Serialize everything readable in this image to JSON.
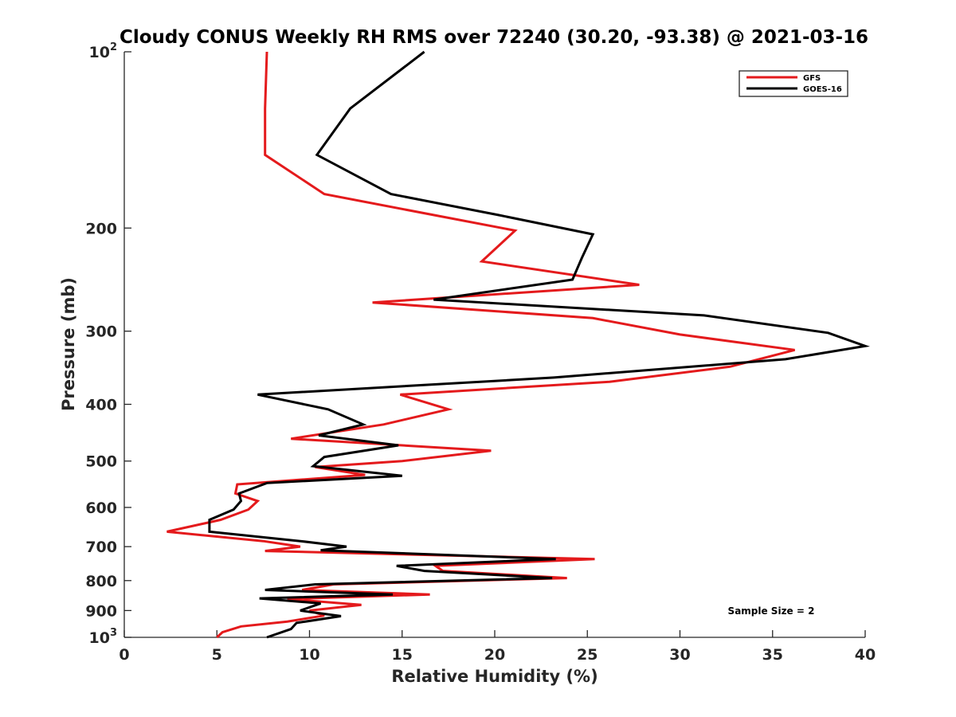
{
  "chart_data": {
    "type": "line",
    "title": "Cloudy CONUS Weekly RH RMS over 72240 (30.20, -93.38) @ 2021-03-16",
    "xlabel": "Relative Humidity (%)",
    "ylabel": "Pressure (mb)",
    "xlim": [
      0,
      40
    ],
    "ylim": [
      100,
      1000
    ],
    "yscale": "log",
    "y_reversed": true,
    "xticks": [
      0,
      5,
      10,
      15,
      20,
      25,
      30,
      35,
      40
    ],
    "xtick_labels": [
      "0",
      "5",
      "10",
      "15",
      "20",
      "25",
      "30",
      "35",
      "40"
    ],
    "yticks": [
      100,
      200,
      300,
      400,
      500,
      600,
      700,
      800,
      900,
      1000
    ],
    "ytick_labels": [
      {
        "base": "10",
        "exp": "2"
      },
      {
        "base": "200",
        "exp": ""
      },
      {
        "base": "300",
        "exp": ""
      },
      {
        "base": "400",
        "exp": ""
      },
      {
        "base": "500",
        "exp": ""
      },
      {
        "base": "600",
        "exp": ""
      },
      {
        "base": "700",
        "exp": ""
      },
      {
        "base": "800",
        "exp": ""
      },
      {
        "base": "900",
        "exp": ""
      },
      {
        "base": "10",
        "exp": "3"
      }
    ],
    "legend_position": "top-right",
    "annotation": "Sample Size = 2",
    "series": [
      {
        "name": "GFS",
        "color": "#e41a1c",
        "points": [
          [
            7.7,
            100
          ],
          [
            7.6,
            125
          ],
          [
            7.6,
            150
          ],
          [
            10.8,
            175
          ],
          [
            16.7,
            190
          ],
          [
            21.1,
            202
          ],
          [
            19.3,
            228
          ],
          [
            27.8,
            250
          ],
          [
            13.4,
            268
          ],
          [
            25.3,
            285
          ],
          [
            30.0,
            304
          ],
          [
            36.2,
            323
          ],
          [
            32.7,
            345
          ],
          [
            26.2,
            366
          ],
          [
            14.9,
            385
          ],
          [
            17.5,
            408
          ],
          [
            14.0,
            433
          ],
          [
            9.0,
            458
          ],
          [
            19.8,
            480
          ],
          [
            15.0,
            500
          ],
          [
            10.3,
            512
          ],
          [
            13.0,
            528
          ],
          [
            6.1,
            548
          ],
          [
            6.0,
            568
          ],
          [
            7.2,
            585
          ],
          [
            6.7,
            605
          ],
          [
            5.2,
            630
          ],
          [
            2.3,
            660
          ],
          [
            7.5,
            685
          ],
          [
            9.5,
            700
          ],
          [
            7.6,
            712
          ],
          [
            25.4,
            735
          ],
          [
            16.8,
            755
          ],
          [
            17.2,
            770
          ],
          [
            23.9,
            792
          ],
          [
            11.3,
            812
          ],
          [
            9.6,
            830
          ],
          [
            16.5,
            845
          ],
          [
            8.8,
            860
          ],
          [
            12.8,
            880
          ],
          [
            10.0,
            900
          ],
          [
            10.8,
            918
          ],
          [
            8.8,
            940
          ],
          [
            6.3,
            958
          ],
          [
            5.3,
            980
          ],
          [
            5.0,
            1000
          ]
        ]
      },
      {
        "name": "GOES-16",
        "color": "#000000",
        "points": [
          [
            16.2,
            100
          ],
          [
            12.2,
            125
          ],
          [
            10.4,
            150
          ],
          [
            14.4,
            175
          ],
          [
            20.2,
            190
          ],
          [
            25.3,
            205
          ],
          [
            24.7,
            225
          ],
          [
            24.2,
            245
          ],
          [
            16.7,
            265
          ],
          [
            31.3,
            282
          ],
          [
            38.0,
            302
          ],
          [
            40.0,
            318
          ],
          [
            35.7,
            335
          ],
          [
            23.2,
            360
          ],
          [
            7.2,
            385
          ],
          [
            11.0,
            408
          ],
          [
            12.9,
            433
          ],
          [
            10.5,
            452
          ],
          [
            14.8,
            470
          ],
          [
            10.8,
            492
          ],
          [
            10.2,
            510
          ],
          [
            15.0,
            530
          ],
          [
            7.7,
            545
          ],
          [
            6.2,
            568
          ],
          [
            6.3,
            585
          ],
          [
            5.9,
            605
          ],
          [
            4.6,
            630
          ],
          [
            4.6,
            660
          ],
          [
            9.5,
            685
          ],
          [
            12.0,
            700
          ],
          [
            10.6,
            710
          ],
          [
            23.3,
            735
          ],
          [
            14.7,
            755
          ],
          [
            16.2,
            770
          ],
          [
            23.1,
            792
          ],
          [
            10.3,
            812
          ],
          [
            7.6,
            830
          ],
          [
            14.5,
            845
          ],
          [
            7.3,
            858
          ],
          [
            10.6,
            875
          ],
          [
            9.5,
            900
          ],
          [
            11.7,
            920
          ],
          [
            9.3,
            945
          ],
          [
            9.0,
            968
          ],
          [
            7.7,
            1000
          ]
        ]
      }
    ]
  }
}
